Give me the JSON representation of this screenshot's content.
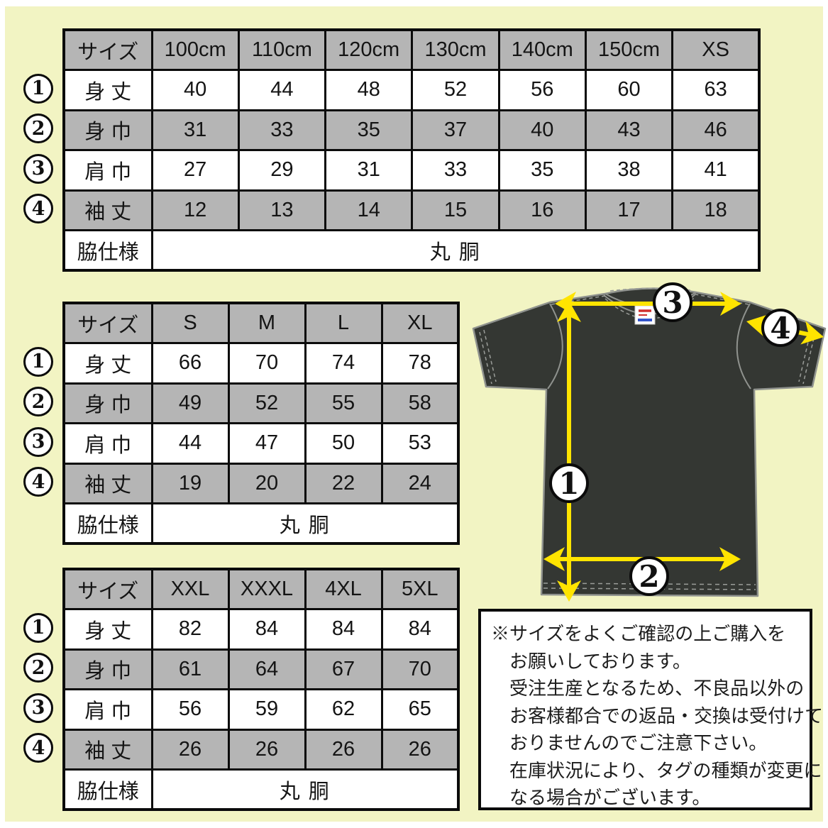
{
  "page": {
    "background": "#f2f4c3",
    "margin_color": "#ffffff"
  },
  "colors": {
    "table_gray": "#b5b5b5",
    "table_white": "#ffffff",
    "border_black": "#0b0b0b",
    "shirt_dark": "#343733",
    "shirt_outline": "#8f928e",
    "arrow_yellow": "#ffe400",
    "tag_red": "#d03030",
    "tag_blue": "#3355cc"
  },
  "tables": [
    {
      "name": "kids-sizes",
      "header": [
        "サイズ",
        "100cm",
        "110cm",
        "120cm",
        "130cm",
        "140cm",
        "150cm",
        "XS"
      ],
      "rows": [
        {
          "circle": "1",
          "label": "身 丈",
          "values": [
            "40",
            "44",
            "48",
            "52",
            "56",
            "60",
            "63"
          ]
        },
        {
          "circle": "2",
          "label": "身 巾",
          "values": [
            "31",
            "33",
            "35",
            "37",
            "40",
            "43",
            "46"
          ]
        },
        {
          "circle": "3",
          "label": "肩 巾",
          "values": [
            "27",
            "29",
            "31",
            "33",
            "35",
            "38",
            "41"
          ]
        },
        {
          "circle": "4",
          "label": "袖 丈",
          "values": [
            "12",
            "13",
            "14",
            "15",
            "16",
            "17",
            "18"
          ]
        }
      ],
      "footer_label": "脇仕様",
      "footer_value": "丸 胴"
    },
    {
      "name": "adult-sizes",
      "header": [
        "サイズ",
        "S",
        "M",
        "L",
        "XL"
      ],
      "rows": [
        {
          "circle": "1",
          "label": "身 丈",
          "values": [
            "66",
            "70",
            "74",
            "78"
          ]
        },
        {
          "circle": "2",
          "label": "身 巾",
          "values": [
            "49",
            "52",
            "55",
            "58"
          ]
        },
        {
          "circle": "3",
          "label": "肩 巾",
          "values": [
            "44",
            "47",
            "50",
            "53"
          ]
        },
        {
          "circle": "4",
          "label": "袖 丈",
          "values": [
            "19",
            "20",
            "22",
            "24"
          ]
        }
      ],
      "footer_label": "脇仕様",
      "footer_value": "丸 胴"
    },
    {
      "name": "large-sizes",
      "header": [
        "サイズ",
        "XXL",
        "XXXL",
        "4XL",
        "5XL"
      ],
      "rows": [
        {
          "circle": "1",
          "label": "身 丈",
          "values": [
            "82",
            "84",
            "84",
            "84"
          ]
        },
        {
          "circle": "2",
          "label": "身 巾",
          "values": [
            "61",
            "64",
            "67",
            "70"
          ]
        },
        {
          "circle": "3",
          "label": "肩 巾",
          "values": [
            "56",
            "59",
            "62",
            "65"
          ]
        },
        {
          "circle": "4",
          "label": "袖 丈",
          "values": [
            "26",
            "26",
            "26",
            "26"
          ]
        }
      ],
      "footer_label": "脇仕様",
      "footer_value": "丸 胴"
    }
  ],
  "diagram": {
    "circle_labels": [
      "1",
      "2",
      "3",
      "4"
    ]
  },
  "notice": {
    "lines": [
      "※サイズをよくご確認の上ご購入を",
      "お願いしております。",
      "受注生産となるため、不良品以外の",
      "お客様都合での返品・交換は受付けて",
      "おりませんのでご注意下さい。",
      "在庫状況により、タグの種類が変更に",
      "なる場合がございます。"
    ]
  }
}
